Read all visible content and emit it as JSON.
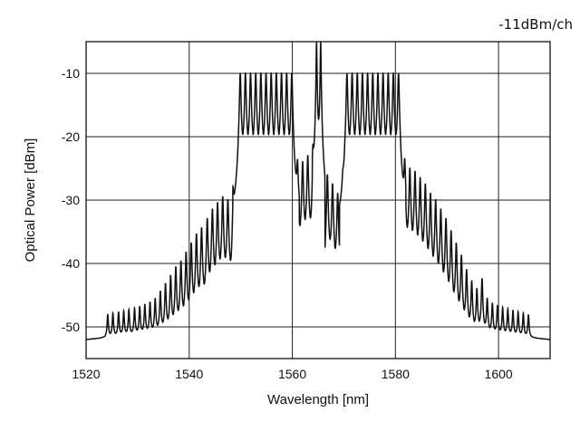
{
  "chart_data": {
    "type": "line",
    "title": "",
    "annotation": "-11dBm/ch",
    "xlabel": "Wavelength [nm]",
    "ylabel": "Optical Power [dBm]",
    "xlim": [
      1520,
      1610
    ],
    "ylim": [
      -55,
      -5
    ],
    "xticks": [
      1520,
      1540,
      1560,
      1580,
      1600
    ],
    "yticks": [
      -10,
      -20,
      -30,
      -40,
      -50
    ],
    "xtick_labels": [
      "1520",
      "1540",
      "1560",
      "1580",
      "1600"
    ],
    "ytick_labels": [
      "-10",
      "-20",
      "-30",
      "-40",
      "-50"
    ],
    "grid": true,
    "line_color": "#111111",
    "noise_floor": {
      "center": 1565,
      "peak": -50,
      "edge": -52
    },
    "pumps": [
      {
        "x": 1564.7,
        "y": -5
      },
      {
        "x": 1565.5,
        "y": -5
      }
    ],
    "peaks": [
      {
        "x": 1524.2,
        "y": -50.5
      },
      {
        "x": 1525.2,
        "y": -50.3
      },
      {
        "x": 1526.3,
        "y": -50.0
      },
      {
        "x": 1527.3,
        "y": -49.8
      },
      {
        "x": 1528.3,
        "y": -49.5
      },
      {
        "x": 1529.4,
        "y": -49.2
      },
      {
        "x": 1530.4,
        "y": -48.8
      },
      {
        "x": 1531.4,
        "y": -48.3
      },
      {
        "x": 1532.4,
        "y": -47.8
      },
      {
        "x": 1533.4,
        "y": -47.0
      },
      {
        "x": 1534.4,
        "y": -45.5
      },
      {
        "x": 1535.4,
        "y": -44.0
      },
      {
        "x": 1536.4,
        "y": -42.5
      },
      {
        "x": 1537.4,
        "y": -41.0
      },
      {
        "x": 1538.4,
        "y": -40.0
      },
      {
        "x": 1539.4,
        "y": -38.5
      },
      {
        "x": 1540.4,
        "y": -37.0
      },
      {
        "x": 1541.4,
        "y": -35.5
      },
      {
        "x": 1542.4,
        "y": -34.5
      },
      {
        "x": 1543.5,
        "y": -33.0
      },
      {
        "x": 1544.5,
        "y": -31.5
      },
      {
        "x": 1545.5,
        "y": -30.5
      },
      {
        "x": 1546.5,
        "y": -29.5
      },
      {
        "x": 1547.5,
        "y": -30.0
      },
      {
        "x": 1548.5,
        "y": -30.5
      },
      {
        "x": 1549.9,
        "y": -10.0
      },
      {
        "x": 1550.9,
        "y": -10.0
      },
      {
        "x": 1551.9,
        "y": -10.0
      },
      {
        "x": 1552.9,
        "y": -10.0
      },
      {
        "x": 1553.9,
        "y": -10.0
      },
      {
        "x": 1554.9,
        "y": -10.0
      },
      {
        "x": 1555.9,
        "y": -10.0
      },
      {
        "x": 1556.9,
        "y": -10.0
      },
      {
        "x": 1557.9,
        "y": -10.0
      },
      {
        "x": 1558.9,
        "y": -10.0
      },
      {
        "x": 1559.9,
        "y": -10.0
      },
      {
        "x": 1561.0,
        "y": -25.0
      },
      {
        "x": 1562.0,
        "y": -24.0
      },
      {
        "x": 1563.0,
        "y": -23.0
      },
      {
        "x": 1564.0,
        "y": -23.5
      },
      {
        "x": 1566.8,
        "y": -26.0
      },
      {
        "x": 1567.8,
        "y": -27.5
      },
      {
        "x": 1568.8,
        "y": -29.0
      },
      {
        "x": 1569.8,
        "y": -30.5
      },
      {
        "x": 1570.6,
        "y": -10.0
      },
      {
        "x": 1571.6,
        "y": -10.0
      },
      {
        "x": 1572.6,
        "y": -10.0
      },
      {
        "x": 1573.6,
        "y": -10.0
      },
      {
        "x": 1574.6,
        "y": -10.0
      },
      {
        "x": 1575.6,
        "y": -10.0
      },
      {
        "x": 1576.6,
        "y": -10.0
      },
      {
        "x": 1577.6,
        "y": -10.0
      },
      {
        "x": 1578.6,
        "y": -10.0
      },
      {
        "x": 1579.6,
        "y": -10.0
      },
      {
        "x": 1580.6,
        "y": -10.0
      },
      {
        "x": 1581.8,
        "y": -24.5
      },
      {
        "x": 1582.8,
        "y": -25.0
      },
      {
        "x": 1583.8,
        "y": -25.5
      },
      {
        "x": 1584.8,
        "y": -26.5
      },
      {
        "x": 1585.8,
        "y": -27.5
      },
      {
        "x": 1586.8,
        "y": -29.0
      },
      {
        "x": 1587.8,
        "y": -30.0
      },
      {
        "x": 1588.8,
        "y": -31.5
      },
      {
        "x": 1589.8,
        "y": -33.0
      },
      {
        "x": 1590.8,
        "y": -35.0
      },
      {
        "x": 1591.8,
        "y": -37.0
      },
      {
        "x": 1592.8,
        "y": -39.0
      },
      {
        "x": 1593.8,
        "y": -41.5
      },
      {
        "x": 1594.8,
        "y": -43.5
      },
      {
        "x": 1595.8,
        "y": -45.0
      },
      {
        "x": 1596.8,
        "y": -43.0
      },
      {
        "x": 1597.8,
        "y": -47.0
      },
      {
        "x": 1598.8,
        "y": -48.0
      },
      {
        "x": 1599.8,
        "y": -48.5
      },
      {
        "x": 1600.8,
        "y": -49.0
      },
      {
        "x": 1601.8,
        "y": -49.3
      },
      {
        "x": 1602.8,
        "y": -49.6
      },
      {
        "x": 1603.8,
        "y": -50.0
      },
      {
        "x": 1604.8,
        "y": -50.3
      },
      {
        "x": 1605.8,
        "y": -50.6
      }
    ]
  }
}
